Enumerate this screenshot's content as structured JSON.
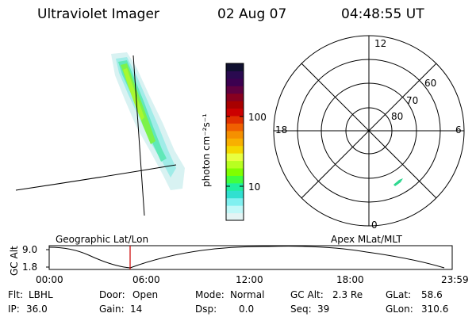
{
  "header": {
    "instrument": "Ultraviolet Imager",
    "date": "02 Aug 07",
    "time": "04:48:55 UT"
  },
  "colorbar": {
    "label": "photon cm⁻²s⁻¹",
    "ticks": [
      "100",
      "10"
    ],
    "colors": [
      "#101030",
      "#2a0a50",
      "#3c0050",
      "#600040",
      "#880020",
      "#a80000",
      "#cc0000",
      "#e03000",
      "#f06000",
      "#f59000",
      "#f8b000",
      "#f4d800",
      "#e8ff40",
      "#b8ff20",
      "#80ff00",
      "#40ff40",
      "#20f0a0",
      "#30e0d0",
      "#80f0f0",
      "#c0f8f8",
      "#e4f4f4"
    ]
  },
  "polar_plot": {
    "mlt_labels": [
      "12",
      "18",
      "6",
      "0"
    ],
    "lat_labels": [
      "60",
      "70",
      "80"
    ]
  },
  "alt_plot": {
    "ylabel": "GC Alt",
    "yticks": [
      "9.0",
      "1.8"
    ],
    "left_title": "Geographic Lat/Lon",
    "right_title": "Apex MLat/MLT",
    "xticks": [
      "00:00",
      "06:00",
      "12:00",
      "18:00",
      "23:59"
    ]
  },
  "info": {
    "row1": [
      {
        "label": "Flt:",
        "value": "LBHL"
      },
      {
        "label": "Door:",
        "value": "Open"
      },
      {
        "label": "Mode:",
        "value": "Normal"
      },
      {
        "label": "GC Alt:",
        "value": "2.3 Re"
      },
      {
        "label": "GLat:",
        "value": "58.6"
      }
    ],
    "row2": [
      {
        "label": "IP:",
        "value": "36.0"
      },
      {
        "label": "Gain:",
        "value": "14"
      },
      {
        "label": "Dsp:",
        "value": "0.0"
      },
      {
        "label": "Seq:",
        "value": "39"
      },
      {
        "label": "GLon:",
        "value": "310.6"
      }
    ]
  }
}
